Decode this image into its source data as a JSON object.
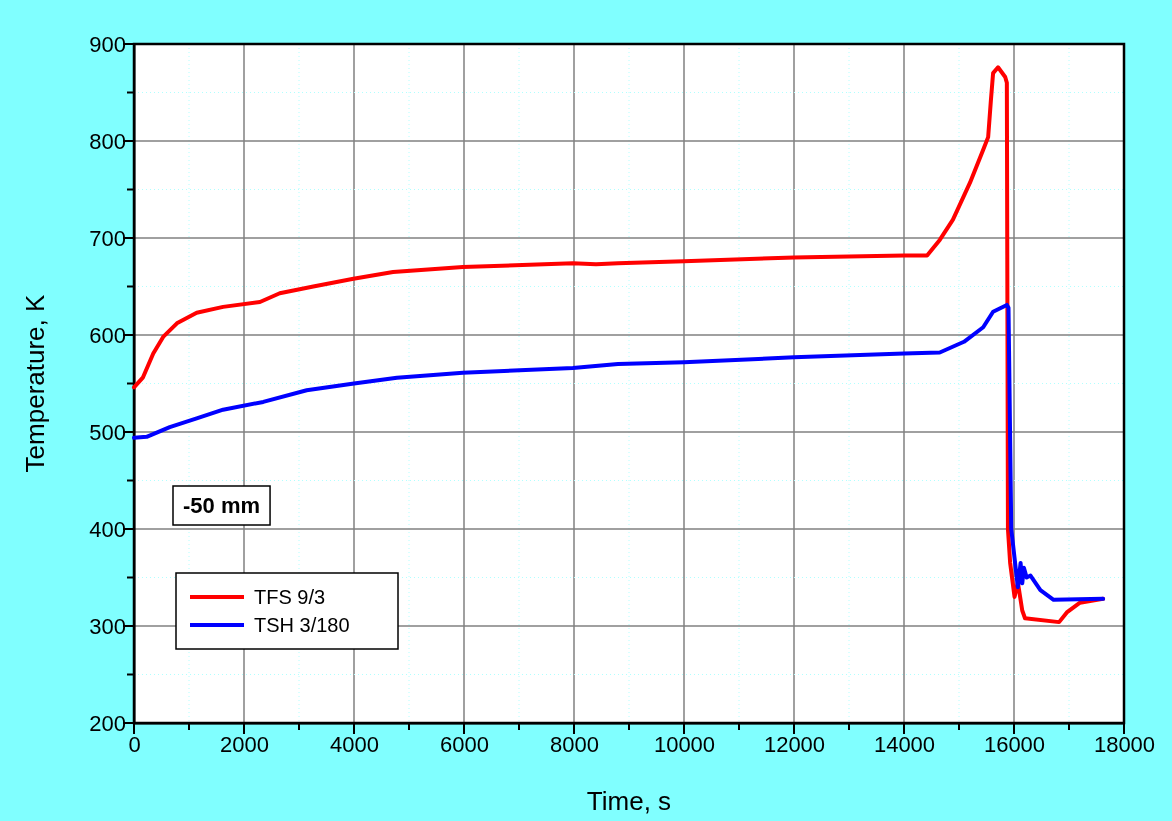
{
  "chart_data": {
    "type": "line",
    "xlabel": "Time, s",
    "ylabel": "Temperature, K",
    "xlim": [
      0,
      18000
    ],
    "ylim": [
      200,
      900
    ],
    "xticks": [
      0,
      {
        "value": 1000,
        "label": null
      },
      2000,
      {
        "value": 3000,
        "label": null
      },
      4000,
      {
        "value": 5000,
        "label": null
      },
      6000,
      {
        "value": 7000,
        "label": null
      },
      8000,
      {
        "value": 9000,
        "label": null
      },
      10000,
      {
        "value": 11000,
        "label": null
      },
      12000,
      {
        "value": 13000,
        "label": null
      },
      14000,
      {
        "value": 15000,
        "label": null
      },
      16000,
      {
        "value": 17000,
        "label": null
      },
      18000
    ],
    "yticks": [
      200,
      {
        "value": 250,
        "label": null
      },
      300,
      {
        "value": 350,
        "label": null
      },
      400,
      {
        "value": 450,
        "label": null
      },
      500,
      {
        "value": 550,
        "label": null
      },
      600,
      {
        "value": 650,
        "label": null
      },
      700,
      {
        "value": 750,
        "label": null
      },
      800,
      {
        "value": 850,
        "label": null
      },
      900
    ],
    "grid": true,
    "legend": "bottom left",
    "line_style": "solid",
    "marker": "none",
    "annotations": [
      "-50 mm"
    ],
    "series": [
      {
        "name": "TFS 9/3",
        "color": "#ff0000",
        "x": [
          0,
          160,
          350,
          530,
          780,
          1140,
          1620,
          2290,
          2650,
          3260,
          3990,
          4710,
          5980,
          7980,
          8400,
          8800,
          10000,
          12000,
          14000,
          14420,
          14650,
          14890,
          15200,
          15440,
          15530,
          15580,
          15620,
          15710,
          15840,
          15870,
          15890,
          15930,
          16010,
          16070,
          16150,
          16200,
          16820,
          16960,
          17200,
          17620
        ],
        "values": [
          546,
          556,
          581,
          598,
          612,
          623,
          629,
          634,
          643,
          650,
          658,
          665,
          670,
          674,
          673,
          674,
          676,
          680,
          682,
          682,
          698,
          719,
          757,
          791,
          804,
          842,
          870,
          876,
          866,
          860,
          400,
          365,
          330,
          345,
          316,
          308,
          304,
          314,
          324,
          328
        ]
      },
      {
        "name": "TSH 3/180",
        "color": "#0000ff",
        "x": [
          0,
          230,
          650,
          1140,
          1620,
          2350,
          3140,
          4000,
          4780,
          5980,
          7980,
          8800,
          10000,
          12000,
          14000,
          14650,
          15090,
          15440,
          15620,
          15870,
          15900,
          15950,
          16070,
          16120,
          16150,
          16180,
          16230,
          16300,
          16480,
          16720,
          17620
        ],
        "values": [
          494,
          495,
          505,
          514,
          523,
          531,
          543,
          550,
          556,
          561,
          566,
          570,
          572,
          577,
          581,
          582,
          593,
          608,
          624,
          631,
          628,
          400,
          340,
          365,
          344,
          360,
          350,
          352,
          337,
          327,
          328
        ]
      }
    ]
  }
}
